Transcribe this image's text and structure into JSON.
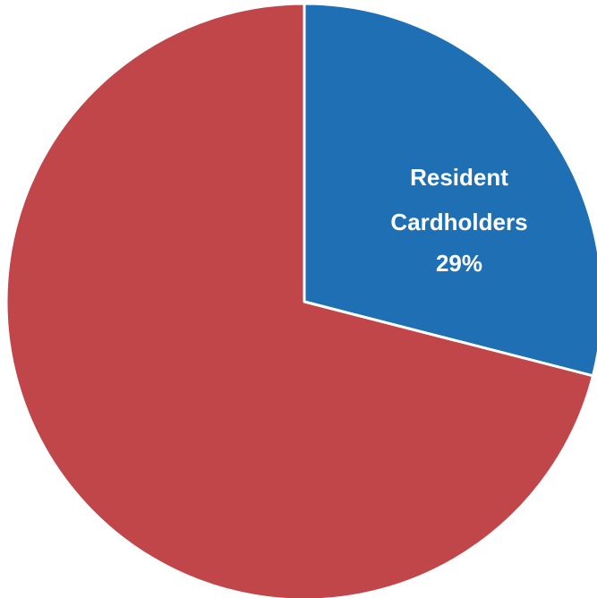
{
  "chart_data": {
    "type": "pie",
    "slices": [
      {
        "label": "Resident Cardholders",
        "value": 29,
        "color": "#1f6fb4",
        "show_label": true
      },
      {
        "label": "",
        "value": 71,
        "color": "#c0464a",
        "show_label": false
      }
    ],
    "label_color": "#ffffff"
  }
}
